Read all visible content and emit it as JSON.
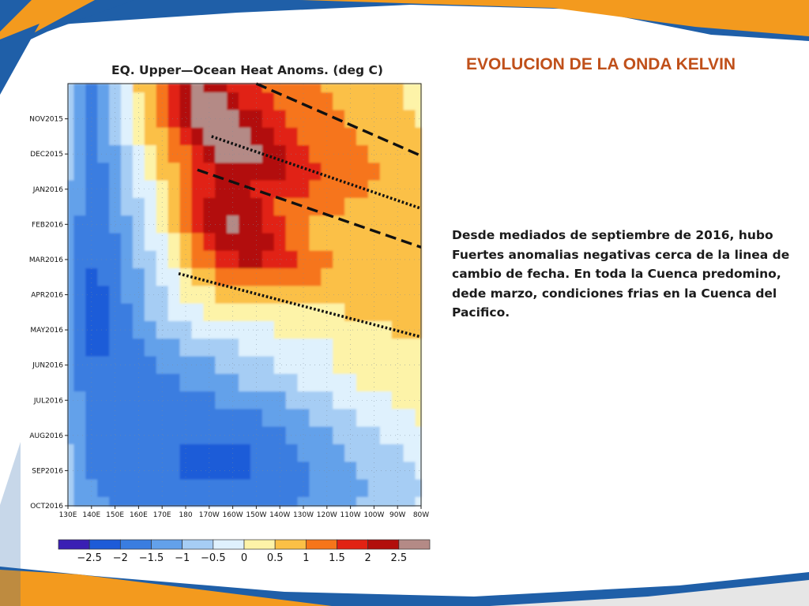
{
  "slide": {
    "title": "EVOLUCION DE LA ONDA KELVIN",
    "body": "Desde mediados de septiembre de 2016, hubo Fuertes anomalias negativas cerca de la linea de cambio de fecha. En toda la Cuenca predomino, dede marzo, condiciones frias en la Cuenca del Pacifico.",
    "colors": {
      "title": "#c0501a",
      "accent_blue": "#1f5fa8",
      "accent_orange": "#f39a1e"
    }
  },
  "chart_data": {
    "type": "heatmap",
    "title": "EQ. Upper—Ocean Heat Anoms. (deg C)",
    "x_ticks": [
      "130E",
      "140E",
      "150E",
      "160E",
      "170E",
      "180",
      "170W",
      "160W",
      "150W",
      "140W",
      "130W",
      "120W",
      "110W",
      "100W",
      "90W",
      "80W"
    ],
    "y_ticks": [
      "NOV2015",
      "DEC2015",
      "JAN2016",
      "FEB2016",
      "MAR2016",
      "APR2016",
      "MAY2016",
      "JUN2016",
      "JUL2016",
      "AUG2016",
      "SEP2016",
      "OCT2016"
    ],
    "xlim": [
      "130E",
      "80W"
    ],
    "ylim": [
      "OCT2015",
      "OCT2016"
    ],
    "grid": true,
    "colorbar": {
      "ticks": [
        "−2.5",
        "−2",
        "−1.5",
        "−1",
        "−0.5",
        "0",
        "0.5",
        "1",
        "1.5",
        "2",
        "2.5"
      ],
      "bins": [
        {
          "lo": -3.0,
          "hi": -2.5,
          "color": "#3a1fb4"
        },
        {
          "lo": -2.5,
          "hi": -2.0,
          "color": "#1d5bd8"
        },
        {
          "lo": -2.0,
          "hi": -1.5,
          "color": "#3a7de0"
        },
        {
          "lo": -1.5,
          "hi": -1.0,
          "color": "#63a1ea"
        },
        {
          "lo": -1.0,
          "hi": -0.5,
          "color": "#a6cdf4"
        },
        {
          "lo": -0.5,
          "hi": 0.0,
          "color": "#dff1fd"
        },
        {
          "lo": 0.0,
          "hi": 0.5,
          "color": "#fdf3a8"
        },
        {
          "lo": 0.5,
          "hi": 1.0,
          "color": "#fbc046"
        },
        {
          "lo": 1.0,
          "hi": 1.5,
          "color": "#f6751a"
        },
        {
          "lo": 1.5,
          "hi": 2.0,
          "color": "#e12213"
        },
        {
          "lo": 2.0,
          "hi": 2.5,
          "color": "#b20f0b"
        },
        {
          "lo": 2.5,
          "hi": 3.0,
          "color": "#b48a86"
        }
      ]
    },
    "x_lon_ticks": [
      130,
      140,
      150,
      160,
      170,
      180,
      190,
      200,
      210,
      220,
      230,
      240,
      250,
      260,
      270,
      280
    ],
    "x_range": [
      130,
      280
    ],
    "y_range": [
      0,
      12
    ],
    "grid_lon": [
      130,
      135,
      140,
      145,
      150,
      155,
      160,
      165,
      170,
      175,
      180,
      185,
      190,
      195,
      200,
      205,
      210,
      215,
      220,
      225,
      230,
      235,
      240,
      245,
      250,
      255,
      260,
      265,
      270,
      275,
      280
    ],
    "grid_month": [
      0,
      0.5,
      1,
      1.5,
      2,
      2.5,
      3,
      3.5,
      4,
      4.5,
      5,
      5.5,
      6,
      6.5,
      7,
      7.5,
      8,
      8.5,
      9,
      9.5,
      10,
      10.5,
      11,
      11.5,
      12
    ],
    "anomaly": [
      [
        -0.8,
        -1.2,
        -1.6,
        -1.2,
        -0.8,
        -0.2,
        0.5,
        0.9,
        1.4,
        1.9,
        2.3,
        2.5,
        2.4,
        2.2,
        1.9,
        1.7,
        1.5,
        1.4,
        1.3,
        1.2,
        1.1,
        1.0,
        0.9,
        0.9,
        0.8,
        0.7,
        0.6,
        0.5,
        0.5,
        0.4,
        0.4
      ],
      [
        -0.8,
        -1.2,
        -1.7,
        -1.3,
        -0.8,
        -0.3,
        0.4,
        0.8,
        1.2,
        1.7,
        2.2,
        2.6,
        2.7,
        2.5,
        2.2,
        1.9,
        1.6,
        1.5,
        1.4,
        1.3,
        1.2,
        1.1,
        1.0,
        0.9,
        0.8,
        0.7,
        0.6,
        0.5,
        0.5,
        0.4,
        0.4
      ],
      [
        -0.9,
        -1.3,
        -1.7,
        -1.3,
        -0.9,
        -0.4,
        0.2,
        0.7,
        1.1,
        1.5,
        2.0,
        2.5,
        2.8,
        2.8,
        2.6,
        2.3,
        2.0,
        1.7,
        1.5,
        1.4,
        1.3,
        1.2,
        1.1,
        1.0,
        0.9,
        0.8,
        0.7,
        0.6,
        0.5,
        0.5,
        0.4
      ],
      [
        -0.9,
        -1.3,
        -1.8,
        -1.4,
        -1.0,
        -0.5,
        0.1,
        0.5,
        0.9,
        1.3,
        1.7,
        2.2,
        2.6,
        2.8,
        2.8,
        2.6,
        2.3,
        2.0,
        1.7,
        1.5,
        1.4,
        1.3,
        1.2,
        1.1,
        1.0,
        0.9,
        0.8,
        0.7,
        0.6,
        0.5,
        0.5
      ],
      [
        -1.0,
        -1.4,
        -1.8,
        -1.5,
        -1.1,
        -0.6,
        -0.1,
        0.3,
        0.7,
        1.1,
        1.4,
        1.9,
        2.2,
        2.5,
        2.6,
        2.6,
        2.5,
        2.3,
        2.0,
        1.7,
        1.5,
        1.4,
        1.3,
        1.2,
        1.1,
        1.0,
        0.9,
        0.8,
        0.7,
        0.6,
        0.5
      ],
      [
        -1.0,
        -1.4,
        -1.8,
        -1.6,
        -1.2,
        -0.8,
        -0.3,
        0.1,
        0.5,
        0.9,
        1.2,
        1.6,
        1.9,
        2.1,
        2.3,
        2.4,
        2.4,
        2.3,
        2.1,
        1.8,
        1.6,
        1.5,
        1.4,
        1.3,
        1.2,
        1.1,
        1.0,
        0.9,
        0.8,
        0.7,
        0.6
      ],
      [
        -1.1,
        -1.5,
        -1.9,
        -1.7,
        -1.3,
        -0.9,
        -0.5,
        -0.1,
        0.3,
        0.7,
        1.1,
        1.5,
        1.9,
        2.2,
        2.2,
        2.0,
        1.9,
        1.8,
        1.7,
        1.6,
        1.5,
        1.4,
        1.3,
        1.2,
        1.1,
        1.0,
        0.9,
        0.8,
        0.8,
        0.7,
        0.6
      ],
      [
        -1.1,
        -1.5,
        -1.9,
        -1.8,
        -1.4,
        -1.0,
        -0.6,
        -0.2,
        0.2,
        0.6,
        1.1,
        1.6,
        2.1,
        2.3,
        2.4,
        2.3,
        2.0,
        1.6,
        1.3,
        1.2,
        1.1,
        1.1,
        1.0,
        1.0,
        0.9,
        0.9,
        0.8,
        0.8,
        0.7,
        0.7,
        0.6
      ],
      [
        -1.2,
        -1.6,
        -2.0,
        -1.9,
        -1.5,
        -1.1,
        -0.8,
        -0.4,
        0.1,
        0.6,
        1.1,
        1.7,
        2.1,
        2.4,
        2.5,
        2.4,
        2.2,
        1.9,
        1.5,
        1.2,
        1.0,
        0.9,
        0.9,
        0.8,
        0.8,
        0.8,
        0.7,
        0.7,
        0.7,
        0.6,
        0.6
      ],
      [
        -1.2,
        -1.6,
        -2.0,
        -1.9,
        -1.6,
        -1.2,
        -0.9,
        -0.5,
        -0.1,
        0.4,
        0.9,
        1.4,
        1.9,
        2.2,
        2.4,
        2.4,
        2.3,
        2.1,
        1.8,
        1.4,
        1.1,
        0.9,
        0.8,
        0.7,
        0.7,
        0.7,
        0.7,
        0.6,
        0.6,
        0.6,
        0.6
      ],
      [
        -1.3,
        -1.7,
        -2.0,
        -2.0,
        -1.7,
        -1.3,
        -1.0,
        -0.6,
        -0.2,
        0.2,
        0.6,
        1.0,
        1.4,
        1.7,
        1.9,
        2.0,
        2.0,
        1.9,
        1.7,
        1.5,
        1.3,
        1.1,
        1.0,
        0.9,
        0.8,
        0.8,
        0.8,
        0.7,
        0.7,
        0.7,
        0.7
      ],
      [
        -1.3,
        -1.7,
        -2.1,
        -2.0,
        -1.8,
        -1.4,
        -1.1,
        -0.8,
        -0.4,
        -0.1,
        0.2,
        0.5,
        0.8,
        1.0,
        1.2,
        1.3,
        1.3,
        1.3,
        1.2,
        1.1,
        1.0,
        1.0,
        0.9,
        0.9,
        0.8,
        0.8,
        0.8,
        0.8,
        0.7,
        0.7,
        0.7
      ],
      [
        -1.3,
        -1.7,
        -2.1,
        -2.1,
        -1.9,
        -1.5,
        -1.2,
        -0.9,
        -0.6,
        -0.3,
        0.0,
        0.2,
        0.4,
        0.5,
        0.6,
        0.7,
        0.7,
        0.7,
        0.7,
        0.7,
        0.7,
        0.7,
        0.7,
        0.7,
        0.7,
        0.7,
        0.7,
        0.7,
        0.7,
        0.7,
        0.7
      ],
      [
        -1.4,
        -1.8,
        -2.1,
        -2.1,
        -1.9,
        -1.6,
        -1.3,
        -1.0,
        -0.8,
        -0.5,
        -0.3,
        -0.1,
        0.0,
        0.1,
        0.2,
        0.2,
        0.3,
        0.3,
        0.3,
        0.3,
        0.3,
        0.4,
        0.4,
        0.4,
        0.5,
        0.5,
        0.5,
        0.5,
        0.6,
        0.6,
        0.6
      ],
      [
        -1.4,
        -1.8,
        -2.1,
        -2.1,
        -2.0,
        -1.7,
        -1.4,
        -1.2,
        -1.0,
        -0.8,
        -0.6,
        -0.5,
        -0.4,
        -0.3,
        -0.2,
        -0.2,
        -0.1,
        -0.1,
        0.0,
        0.0,
        0.0,
        0.1,
        0.1,
        0.2,
        0.3,
        0.3,
        0.4,
        0.4,
        0.5,
        0.5,
        0.5
      ],
      [
        -1.4,
        -1.8,
        -2.1,
        -2.1,
        -2.0,
        -1.8,
        -1.6,
        -1.4,
        -1.2,
        -1.1,
        -1.0,
        -0.9,
        -0.8,
        -0.7,
        -0.6,
        -0.5,
        -0.4,
        -0.4,
        -0.3,
        -0.3,
        -0.2,
        -0.2,
        -0.1,
        0.0,
        0.1,
        0.2,
        0.3,
        0.3,
        0.4,
        0.4,
        0.4
      ],
      [
        -1.3,
        -1.7,
        -2.0,
        -2.0,
        -1.9,
        -1.8,
        -1.7,
        -1.6,
        -1.5,
        -1.4,
        -1.3,
        -1.2,
        -1.1,
        -1.0,
        -0.9,
        -0.8,
        -0.7,
        -0.6,
        -0.5,
        -0.4,
        -0.3,
        -0.2,
        -0.1,
        0.0,
        0.1,
        0.1,
        0.2,
        0.2,
        0.3,
        0.3,
        0.3
      ],
      [
        -1.3,
        -1.6,
        -1.9,
        -1.9,
        -1.8,
        -1.7,
        -1.7,
        -1.7,
        -1.7,
        -1.6,
        -1.5,
        -1.4,
        -1.3,
        -1.2,
        -1.1,
        -1.0,
        -0.9,
        -0.8,
        -0.7,
        -0.6,
        -0.5,
        -0.4,
        -0.3,
        -0.2,
        -0.1,
        0.0,
        0.1,
        0.1,
        0.2,
        0.2,
        0.2
      ],
      [
        -1.2,
        -1.5,
        -1.8,
        -1.9,
        -1.8,
        -1.8,
        -1.8,
        -1.8,
        -1.8,
        -1.8,
        -1.7,
        -1.6,
        -1.6,
        -1.5,
        -1.5,
        -1.4,
        -1.3,
        -1.2,
        -1.1,
        -1.0,
        -0.9,
        -0.8,
        -0.7,
        -0.5,
        -0.4,
        -0.3,
        -0.2,
        -0.1,
        0.0,
        0.1,
        0.1
      ],
      [
        -1.2,
        -1.5,
        -1.8,
        -1.8,
        -1.8,
        -1.8,
        -1.9,
        -1.9,
        -1.9,
        -1.9,
        -1.9,
        -1.9,
        -1.9,
        -1.8,
        -1.8,
        -1.7,
        -1.6,
        -1.5,
        -1.4,
        -1.3,
        -1.1,
        -1.0,
        -0.9,
        -0.8,
        -0.6,
        -0.5,
        -0.4,
        -0.3,
        -0.2,
        -0.1,
        0.0
      ],
      [
        -1.1,
        -1.4,
        -1.7,
        -1.8,
        -1.8,
        -1.8,
        -1.9,
        -1.9,
        -2.0,
        -2.0,
        -2.0,
        -2.0,
        -2.0,
        -2.0,
        -2.0,
        -1.9,
        -1.8,
        -1.7,
        -1.6,
        -1.5,
        -1.3,
        -1.2,
        -1.1,
        -1.0,
        -0.8,
        -0.7,
        -0.6,
        -0.5,
        -0.4,
        -0.3,
        -0.2
      ],
      [
        -1.0,
        -1.3,
        -1.6,
        -1.7,
        -1.8,
        -1.8,
        -1.9,
        -1.9,
        -2.0,
        -2.0,
        -2.1,
        -2.1,
        -2.1,
        -2.1,
        -2.1,
        -2.1,
        -2.0,
        -1.9,
        -1.8,
        -1.6,
        -1.5,
        -1.4,
        -1.2,
        -1.1,
        -1.0,
        -0.9,
        -0.8,
        -0.7,
        -0.6,
        -0.5,
        -0.4
      ],
      [
        -1.0,
        -1.3,
        -1.6,
        -1.7,
        -1.7,
        -1.8,
        -1.8,
        -1.9,
        -2.0,
        -2.0,
        -2.1,
        -2.1,
        -2.1,
        -2.1,
        -2.1,
        -2.1,
        -2.0,
        -1.9,
        -1.8,
        -1.7,
        -1.6,
        -1.5,
        -1.4,
        -1.2,
        -1.1,
        -1.0,
        -0.9,
        -0.8,
        -0.7,
        -0.6,
        -0.5
      ],
      [
        -0.9,
        -1.2,
        -1.5,
        -1.6,
        -1.7,
        -1.7,
        -1.8,
        -1.8,
        -1.9,
        -1.9,
        -2.0,
        -2.0,
        -2.0,
        -2.0,
        -2.0,
        -2.0,
        -1.9,
        -1.8,
        -1.8,
        -1.7,
        -1.6,
        -1.5,
        -1.4,
        -1.3,
        -1.2,
        -1.1,
        -1.0,
        -0.9,
        -0.8,
        -0.7,
        -0.6
      ],
      [
        -0.8,
        -1.1,
        -1.4,
        -1.5,
        -1.6,
        -1.6,
        -1.7,
        -1.7,
        -1.8,
        -1.8,
        -1.9,
        -1.9,
        -1.9,
        -1.9,
        -1.9,
        -1.9,
        -1.8,
        -1.8,
        -1.7,
        -1.6,
        -1.5,
        -1.4,
        -1.3,
        -1.2,
        -1.1,
        -1.0,
        -0.9,
        -0.8,
        -0.7,
        -0.6,
        -0.5
      ]
    ],
    "annotation_lines": [
      {
        "style": "dashed",
        "from": [
          210,
          0
        ],
        "to": [
          280,
          2.05
        ]
      },
      {
        "style": "dotted",
        "from": [
          191,
          1.5
        ],
        "to": [
          280,
          3.55
        ]
      },
      {
        "style": "dashed",
        "from": [
          185,
          2.45
        ],
        "to": [
          280,
          4.65
        ]
      },
      {
        "style": "dotted",
        "from": [
          177,
          5.4
        ],
        "to": [
          280,
          7.2
        ]
      }
    ]
  }
}
